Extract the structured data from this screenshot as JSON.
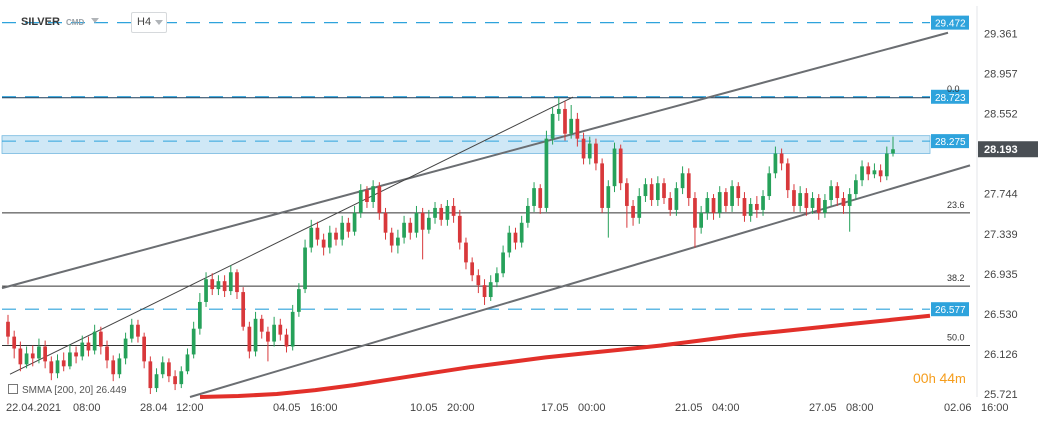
{
  "header": {
    "symbol": "SILVER",
    "symbol_suffix": "CMD",
    "timeframe": "H4"
  },
  "indicator": {
    "label": "SMMA",
    "params": "[200, 20]",
    "value": "26.449"
  },
  "timer": {
    "hours": "00",
    "hours_unit": "h",
    "minutes": "44",
    "minutes_unit": "m"
  },
  "chart_data": {
    "type": "candlestick",
    "instrument": "SILVER",
    "timeframe": "H4",
    "y_ticks": [
      29.361,
      28.957,
      28.552,
      28.193,
      27.744,
      27.339,
      26.935,
      26.53,
      26.126,
      25.721
    ],
    "y_range": [
      25.69,
      29.64
    ],
    "x_labels": [
      "22.04.2021",
      "08:00",
      "28.04",
      "12:00",
      "04.05",
      "16:00",
      "10.05",
      "20:00",
      "17.05",
      "00:00",
      "21.05",
      "04:00",
      "27.05",
      "08:00",
      "02.06",
      "16:00"
    ],
    "current_price": "28.193",
    "horizontal_levels": [
      {
        "price": 29.472,
        "label": "29.472",
        "style": "dashed",
        "color": "#2ea3dc"
      },
      {
        "price": 28.723,
        "label": "28.723",
        "style": "dashed",
        "color": "#2ea3dc"
      },
      {
        "price": 28.275,
        "label": "28.275",
        "style": "zone",
        "color": "#2ea3dc"
      },
      {
        "price": 26.577,
        "label": "26.577",
        "style": "dashed",
        "color": "#2ea3dc"
      }
    ],
    "fibonacci": [
      {
        "level": "0.0",
        "price": 28.72
      },
      {
        "level": "23.6",
        "price": 27.55
      },
      {
        "level": "38.2",
        "price": 26.81
      },
      {
        "level": "50.0",
        "price": 26.21
      }
    ],
    "candles": [
      [
        26.45,
        26.3,
        26.52,
        26.22
      ],
      [
        26.3,
        26.18,
        26.36,
        26.08
      ],
      [
        26.18,
        26.02,
        26.25,
        25.95
      ],
      [
        26.02,
        26.13,
        26.2,
        25.98
      ],
      [
        26.13,
        26.08,
        26.21,
        26.0
      ],
      [
        26.08,
        26.2,
        26.28,
        26.03
      ],
      [
        26.2,
        26.05,
        26.26,
        25.98
      ],
      [
        26.05,
        25.93,
        26.1,
        25.86
      ],
      [
        25.93,
        26.06,
        26.12,
        25.88
      ],
      [
        26.06,
        26.0,
        26.14,
        25.95
      ],
      [
        26.0,
        26.14,
        26.22,
        25.97
      ],
      [
        26.14,
        26.1,
        26.2,
        26.03
      ],
      [
        26.1,
        26.24,
        26.31,
        26.06
      ],
      [
        26.24,
        26.16,
        26.3,
        26.1
      ],
      [
        26.16,
        26.35,
        26.42,
        26.12
      ],
      [
        26.35,
        26.2,
        26.4,
        26.12
      ],
      [
        26.2,
        26.06,
        26.26,
        25.98
      ],
      [
        26.06,
        25.92,
        26.11,
        25.85
      ],
      [
        25.92,
        26.08,
        26.13,
        25.88
      ],
      [
        26.08,
        26.28,
        26.34,
        26.02
      ],
      [
        26.28,
        26.42,
        26.48,
        26.24
      ],
      [
        26.42,
        26.3,
        26.47,
        26.24
      ],
      [
        26.3,
        26.05,
        26.34,
        25.98
      ],
      [
        26.05,
        25.78,
        26.1,
        25.72
      ],
      [
        25.78,
        25.92,
        25.98,
        25.74
      ],
      [
        25.92,
        26.04,
        26.1,
        25.88
      ],
      [
        26.04,
        25.9,
        26.08,
        25.84
      ],
      [
        25.9,
        25.82,
        25.96,
        25.76
      ],
      [
        25.82,
        25.95,
        26.0,
        25.78
      ],
      [
        25.95,
        26.12,
        26.18,
        25.92
      ],
      [
        26.12,
        26.38,
        26.45,
        26.08
      ],
      [
        26.38,
        26.65,
        26.74,
        26.32
      ],
      [
        26.65,
        26.88,
        26.95,
        26.6
      ],
      [
        26.88,
        26.78,
        26.94,
        26.72
      ],
      [
        26.78,
        26.86,
        26.92,
        26.72
      ],
      [
        26.86,
        26.76,
        26.92,
        26.7
      ],
      [
        26.76,
        26.95,
        27.02,
        26.72
      ],
      [
        26.95,
        26.75,
        26.98,
        26.68
      ],
      [
        26.75,
        26.4,
        26.8,
        26.36
      ],
      [
        26.4,
        26.15,
        26.45,
        26.08
      ],
      [
        26.15,
        26.48,
        26.55,
        26.1
      ],
      [
        26.48,
        26.35,
        26.52,
        26.28
      ],
      [
        26.35,
        26.25,
        26.4,
        26.05
      ],
      [
        26.25,
        26.42,
        26.5,
        26.2
      ],
      [
        26.42,
        26.32,
        26.48,
        26.26
      ],
      [
        26.32,
        26.2,
        26.38,
        26.14
      ],
      [
        26.2,
        26.55,
        26.62,
        26.16
      ],
      [
        26.55,
        26.78,
        26.84,
        26.5
      ],
      [
        26.78,
        27.2,
        27.28,
        26.74
      ],
      [
        27.2,
        27.4,
        27.48,
        27.15
      ],
      [
        27.4,
        27.28,
        27.46,
        27.22
      ],
      [
        27.28,
        27.2,
        27.34,
        27.12
      ],
      [
        27.2,
        27.35,
        27.42,
        27.14
      ],
      [
        27.35,
        27.28,
        27.4,
        27.22
      ],
      [
        27.28,
        27.45,
        27.52,
        27.22
      ],
      [
        27.45,
        27.36,
        27.5,
        27.3
      ],
      [
        27.36,
        27.55,
        27.62,
        27.32
      ],
      [
        27.55,
        27.78,
        27.84,
        27.5
      ],
      [
        27.78,
        27.66,
        27.82,
        27.6
      ],
      [
        27.66,
        27.82,
        27.88,
        27.6
      ],
      [
        27.82,
        27.55,
        27.86,
        27.48
      ],
      [
        27.55,
        27.35,
        27.6,
        27.28
      ],
      [
        27.35,
        27.22,
        27.4,
        27.15
      ],
      [
        27.22,
        27.3,
        27.38,
        27.14
      ],
      [
        27.3,
        27.45,
        27.52,
        27.24
      ],
      [
        27.45,
        27.35,
        27.5,
        27.28
      ],
      [
        27.35,
        27.55,
        27.62,
        27.3
      ],
      [
        27.55,
        27.38,
        27.6,
        27.08
      ],
      [
        27.38,
        27.5,
        27.58,
        27.34
      ],
      [
        27.5,
        27.6,
        27.66,
        27.44
      ],
      [
        27.6,
        27.48,
        27.64,
        27.42
      ],
      [
        27.48,
        27.62,
        27.68,
        27.42
      ],
      [
        27.62,
        27.52,
        27.7,
        27.45
      ],
      [
        27.52,
        27.25,
        27.58,
        27.18
      ],
      [
        27.25,
        27.05,
        27.3,
        26.98
      ],
      [
        27.05,
        26.92,
        27.1,
        26.86
      ],
      [
        26.92,
        26.82,
        26.98,
        26.74
      ],
      [
        26.82,
        26.7,
        26.88,
        26.62
      ],
      [
        26.7,
        26.85,
        26.92,
        26.66
      ],
      [
        26.85,
        26.94,
        27.0,
        26.8
      ],
      [
        26.94,
        27.15,
        27.22,
        26.9
      ],
      [
        27.15,
        27.35,
        27.42,
        27.1
      ],
      [
        27.35,
        27.25,
        27.4,
        27.18
      ],
      [
        27.25,
        27.45,
        27.52,
        27.2
      ],
      [
        27.45,
        27.62,
        27.7,
        27.4
      ],
      [
        27.62,
        27.8,
        27.86,
        27.56
      ],
      [
        27.8,
        27.6,
        27.84,
        27.54
      ],
      [
        27.6,
        28.3,
        28.38,
        27.56
      ],
      [
        28.3,
        28.55,
        28.62,
        28.24
      ],
      [
        28.55,
        28.6,
        28.72,
        28.48
      ],
      [
        28.6,
        28.35,
        28.68,
        28.28
      ],
      [
        28.35,
        28.5,
        28.64,
        28.3
      ],
      [
        28.5,
        28.3,
        28.56,
        28.22
      ],
      [
        28.3,
        28.1,
        28.36,
        28.04
      ],
      [
        28.1,
        28.25,
        28.32,
        28.04
      ],
      [
        28.25,
        28.05,
        28.3,
        27.98
      ],
      [
        28.05,
        27.6,
        28.1,
        27.55
      ],
      [
        27.6,
        27.82,
        27.88,
        27.3
      ],
      [
        27.82,
        28.2,
        28.26,
        27.76
      ],
      [
        28.2,
        27.85,
        28.24,
        27.78
      ],
      [
        27.85,
        27.62,
        27.9,
        27.4
      ],
      [
        27.62,
        27.5,
        27.68,
        27.42
      ],
      [
        27.5,
        27.72,
        27.8,
        27.44
      ],
      [
        27.72,
        27.84,
        27.9,
        27.66
      ],
      [
        27.84,
        27.68,
        27.9,
        27.62
      ],
      [
        27.68,
        27.85,
        27.92,
        27.62
      ],
      [
        27.85,
        27.7,
        27.9,
        27.64
      ],
      [
        27.7,
        27.58,
        27.76,
        27.52
      ],
      [
        27.58,
        27.8,
        27.86,
        27.52
      ],
      [
        27.8,
        27.95,
        28.02,
        27.74
      ],
      [
        27.95,
        27.7,
        28.0,
        27.62
      ],
      [
        27.7,
        27.4,
        27.76,
        27.2
      ],
      [
        27.4,
        27.55,
        27.62,
        27.34
      ],
      [
        27.55,
        27.7,
        27.76,
        27.48
      ],
      [
        27.7,
        27.55,
        27.74,
        27.48
      ],
      [
        27.55,
        27.76,
        27.82,
        27.5
      ],
      [
        27.76,
        27.62,
        27.8,
        27.56
      ],
      [
        27.62,
        27.82,
        27.88,
        27.56
      ],
      [
        27.82,
        27.7,
        27.86,
        27.62
      ],
      [
        27.7,
        27.52,
        27.76,
        27.46
      ],
      [
        27.52,
        27.64,
        27.7,
        27.46
      ],
      [
        27.64,
        27.58,
        27.72,
        27.5
      ],
      [
        27.58,
        27.72,
        27.78,
        27.52
      ],
      [
        27.72,
        27.95,
        28.02,
        27.68
      ],
      [
        27.95,
        28.15,
        28.22,
        27.9
      ],
      [
        28.15,
        28.05,
        28.2,
        27.98
      ],
      [
        28.05,
        27.78,
        28.1,
        27.7
      ],
      [
        27.78,
        27.62,
        27.84,
        27.56
      ],
      [
        27.62,
        27.75,
        27.82,
        27.56
      ],
      [
        27.75,
        27.6,
        27.8,
        27.52
      ],
      [
        27.6,
        27.7,
        27.76,
        27.54
      ],
      [
        27.7,
        27.55,
        27.74,
        27.48
      ],
      [
        27.55,
        27.68,
        27.74,
        27.5
      ],
      [
        27.68,
        27.82,
        27.88,
        27.62
      ],
      [
        27.82,
        27.7,
        27.86,
        27.62
      ],
      [
        27.7,
        27.62,
        27.76,
        27.54
      ],
      [
        27.62,
        27.74,
        27.8,
        27.36
      ],
      [
        27.74,
        27.88,
        27.94,
        27.68
      ],
      [
        27.88,
        28.02,
        28.08,
        27.82
      ],
      [
        28.02,
        27.94,
        28.06,
        27.88
      ],
      [
        27.94,
        27.98,
        28.05,
        27.9
      ],
      [
        27.98,
        27.92,
        28.04,
        27.86
      ],
      [
        27.92,
        28.15,
        28.22,
        27.88
      ],
      [
        28.15,
        28.193,
        28.32,
        28.12
      ]
    ],
    "smma_values": [
      25.69,
      25.7,
      25.72,
      25.76,
      25.81,
      25.87,
      25.93,
      25.99,
      26.04,
      26.09,
      26.13,
      26.17,
      26.21,
      26.26,
      26.31,
      26.35,
      26.39,
      26.43,
      26.47,
      26.51
    ],
    "grid": false
  }
}
